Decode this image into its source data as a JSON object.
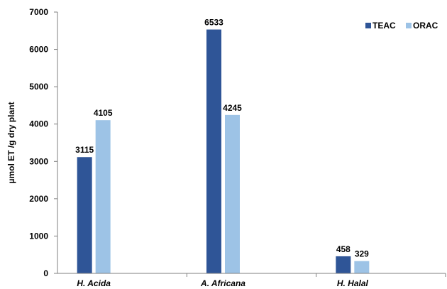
{
  "chart_data": {
    "type": "bar",
    "categories": [
      "H. Acida",
      "A. Africana",
      "H. Halal"
    ],
    "series": [
      {
        "name": "TEAC",
        "values": [
          3115,
          6533,
          458
        ],
        "color": "#2f5597"
      },
      {
        "name": "ORAC",
        "values": [
          4105,
          4245,
          329
        ],
        "color": "#9dc3e6"
      }
    ],
    "data_labels": [
      [
        "3115",
        "6533",
        "458"
      ],
      [
        "4105",
        "4245",
        "329"
      ]
    ],
    "title": "",
    "xlabel": "",
    "ylabel": "µmol ET /g dry plant",
    "ylim": [
      0,
      7000
    ],
    "yticks": [
      0,
      1000,
      2000,
      3000,
      4000,
      5000,
      6000,
      7000
    ],
    "ytick_labels": [
      "0",
      "1000",
      "2000",
      "3000",
      "4000",
      "5000",
      "6000",
      "7000"
    ],
    "grid": false,
    "legend_position": "top-right"
  }
}
